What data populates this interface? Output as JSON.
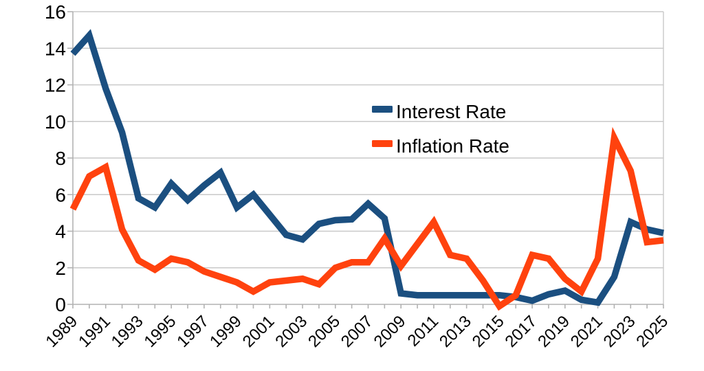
{
  "chart_data": {
    "type": "line",
    "title": "",
    "xlabel": "",
    "ylabel": "",
    "x": [
      1989,
      1990,
      1991,
      1992,
      1993,
      1994,
      1995,
      1996,
      1997,
      1998,
      1999,
      2000,
      2001,
      2002,
      2003,
      2004,
      2005,
      2006,
      2007,
      2008,
      2009,
      2010,
      2011,
      2012,
      2013,
      2014,
      2015,
      2016,
      2017,
      2018,
      2019,
      2020,
      2021,
      2022,
      2023,
      2024,
      2025
    ],
    "x_tick_labels": [
      "1989",
      "1991",
      "1993",
      "1995",
      "1997",
      "1999",
      "2001",
      "2003",
      "2005",
      "2007",
      "2009",
      "2011",
      "2013",
      "2015",
      "2017",
      "2019",
      "2021",
      "2023",
      "2025"
    ],
    "y_ticks": [
      0,
      2,
      4,
      6,
      8,
      10,
      12,
      14,
      16
    ],
    "ylim": [
      0,
      16
    ],
    "xlim": [
      1989,
      2025
    ],
    "grid": "horizontal",
    "legend_position": "center-upper",
    "series": [
      {
        "name": "Interest Rate",
        "color": "#1B4F80",
        "values": [
          13.7,
          14.7,
          11.8,
          9.4,
          5.8,
          5.3,
          6.6,
          5.7,
          6.5,
          7.2,
          5.3,
          6.0,
          4.9,
          3.8,
          3.55,
          4.4,
          4.6,
          4.65,
          5.5,
          4.7,
          0.6,
          0.5,
          0.5,
          0.5,
          0.5,
          0.5,
          0.5,
          0.4,
          0.2,
          0.55,
          0.75,
          0.25,
          0.1,
          1.5,
          4.5,
          4.1,
          3.9
        ]
      },
      {
        "name": "Inflation Rate",
        "color": "#FF420E",
        "values": [
          5.2,
          7.0,
          7.5,
          4.1,
          2.4,
          1.9,
          2.5,
          2.3,
          1.8,
          1.5,
          1.2,
          0.7,
          1.2,
          1.3,
          1.4,
          1.1,
          2.0,
          2.3,
          2.3,
          3.6,
          2.1,
          3.3,
          4.5,
          2.7,
          2.5,
          1.3,
          -0.1,
          0.5,
          2.7,
          2.5,
          1.4,
          0.7,
          2.5,
          9.1,
          7.3,
          3.4,
          3.5
        ]
      }
    ],
    "colors": {
      "background": "#ffffff",
      "grid_line": "#c9c9c9",
      "axis_line": "#b2b2b2",
      "text": "#000000"
    }
  }
}
